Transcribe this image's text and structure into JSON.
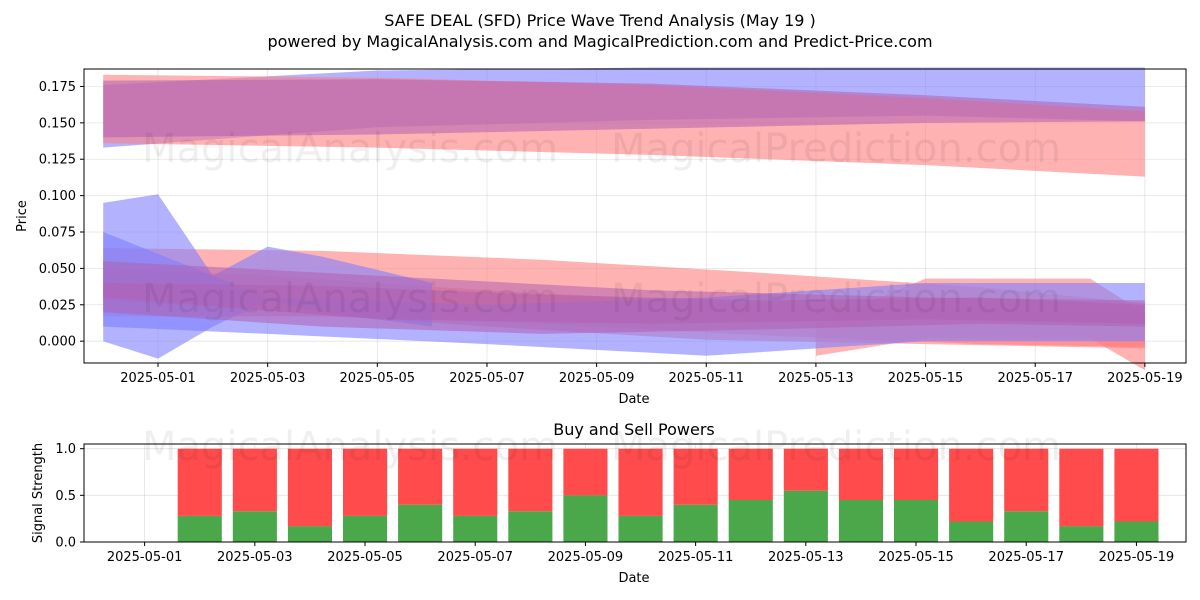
{
  "header": {
    "title": "SAFE DEAL (SFD) Price Wave Trend Analysis (May 19 )",
    "subtitle": "powered by MagicalAnalysis.com and MagicalPrediction.com and Predict-Price.com"
  },
  "watermarks": [
    "MagicalAnalysis.com",
    "MagicalPrediction.com"
  ],
  "colors": {
    "bull": "#4aa84a",
    "bear": "#ff4b4b",
    "blue_band": "#7f7fff",
    "red_band": "#ff7f7f",
    "purple_band": "#b060b0"
  },
  "chart_data": [
    {
      "type": "area",
      "title": "",
      "xlabel": "Date",
      "ylabel": "Price",
      "xlim": [
        "2025-04-30",
        "2025-05-19"
      ],
      "ylim": [
        -0.015,
        0.187
      ],
      "x_ticks": [
        "2025-05-01",
        "2025-05-03",
        "2025-05-05",
        "2025-05-07",
        "2025-05-09",
        "2025-05-11",
        "2025-05-13",
        "2025-05-15",
        "2025-05-17",
        "2025-05-19"
      ],
      "y_ticks": [
        "0.000",
        "0.025",
        "0.050",
        "0.075",
        "0.100",
        "0.125",
        "0.150",
        "0.175"
      ],
      "grid": true,
      "bands": [
        {
          "color": "blue",
          "x": [
            "2025-04-30",
            "2025-05-05",
            "2025-05-10",
            "2025-05-15",
            "2025-05-19"
          ],
          "low": [
            0.133,
            0.147,
            0.152,
            0.155,
            0.151
          ],
          "high": [
            0.176,
            0.186,
            0.188,
            0.188,
            0.188
          ]
        },
        {
          "color": "red",
          "x": [
            "2025-04-30",
            "2025-05-05",
            "2025-05-10",
            "2025-05-15",
            "2025-05-19"
          ],
          "low": [
            0.136,
            0.133,
            0.128,
            0.121,
            0.113
          ],
          "high": [
            0.183,
            0.181,
            0.176,
            0.167,
            0.158
          ]
        },
        {
          "color": "purple",
          "x": [
            "2025-04-30",
            "2025-05-05",
            "2025-05-10",
            "2025-05-15",
            "2025-05-19"
          ],
          "low": [
            0.14,
            0.142,
            0.146,
            0.15,
            0.151
          ],
          "high": [
            0.179,
            0.18,
            0.177,
            0.169,
            0.161
          ]
        },
        {
          "color": "red",
          "x": [
            "2025-04-30",
            "2025-05-04",
            "2025-05-08",
            "2025-05-12",
            "2025-05-16",
            "2025-05-19"
          ],
          "low": [
            0.017,
            0.017,
            0.012,
            0.004,
            -0.002,
            -0.004
          ],
          "high": [
            0.064,
            0.062,
            0.056,
            0.047,
            0.037,
            0.026
          ]
        },
        {
          "color": "red",
          "x": [
            "2025-04-30",
            "2025-05-03",
            "2025-05-07",
            "2025-05-11",
            "2025-05-15",
            "2025-05-19"
          ],
          "low": [
            0.028,
            0.021,
            0.01,
            0.001,
            -0.002,
            -0.005
          ],
          "high": [
            0.05,
            0.045,
            0.035,
            0.027,
            0.022,
            0.02
          ]
        },
        {
          "color": "red",
          "x": [
            "2025-05-13",
            "2025-05-15",
            "2025-05-18",
            "2025-05-19"
          ],
          "low": [
            -0.01,
            0.002,
            0.002,
            -0.02
          ],
          "high": [
            0.012,
            0.043,
            0.043,
            0.019
          ]
        },
        {
          "color": "blue",
          "x": [
            "2025-04-30",
            "2025-05-01",
            "2025-05-02",
            "2025-05-03",
            "2025-05-04",
            "2025-05-06"
          ],
          "low": [
            0.0,
            -0.012,
            0.01,
            0.028,
            0.02,
            0.01
          ],
          "high": [
            0.095,
            0.101,
            0.045,
            0.065,
            0.058,
            0.04
          ]
        },
        {
          "color": "blue",
          "x": [
            "2025-04-30",
            "2025-05-03",
            "2025-05-07",
            "2025-05-11",
            "2025-05-15",
            "2025-05-19"
          ],
          "low": [
            0.01,
            0.005,
            -0.002,
            -0.01,
            0.0,
            0.0
          ],
          "high": [
            0.075,
            0.03,
            0.025,
            0.03,
            0.04,
            0.04
          ]
        },
        {
          "color": "purple",
          "x": [
            "2025-04-30",
            "2025-05-04",
            "2025-05-08",
            "2025-05-12",
            "2025-05-16",
            "2025-05-19"
          ],
          "low": [
            0.02,
            0.01,
            0.005,
            0.008,
            0.012,
            0.01
          ],
          "high": [
            0.04,
            0.038,
            0.032,
            0.028,
            0.03,
            0.025
          ]
        },
        {
          "color": "purple",
          "x": [
            "2025-04-30",
            "2025-05-05",
            "2025-05-10",
            "2025-05-15",
            "2025-05-19"
          ],
          "low": [
            0.03,
            0.015,
            0.012,
            0.015,
            0.012
          ],
          "high": [
            0.055,
            0.045,
            0.035,
            0.03,
            0.028
          ]
        }
      ]
    },
    {
      "type": "bar",
      "title": "Buy and Sell Powers",
      "xlabel": "Date",
      "ylabel": "Signal Strength",
      "ylim": [
        0,
        1.05
      ],
      "y_ticks": [
        "0.0",
        "0.5",
        "1.0"
      ],
      "x_ticks": [
        "2025-05-01",
        "2025-05-03",
        "2025-05-05",
        "2025-05-07",
        "2025-05-09",
        "2025-05-11",
        "2025-05-13",
        "2025-05-15",
        "2025-05-17",
        "2025-05-19"
      ],
      "grid": true,
      "categories": [
        "2025-05-02",
        "2025-05-03",
        "2025-05-04",
        "2025-05-05",
        "2025-05-06",
        "2025-05-07",
        "2025-05-08",
        "2025-05-09",
        "2025-05-10",
        "2025-05-11",
        "2025-05-12",
        "2025-05-13",
        "2025-05-14",
        "2025-05-15",
        "2025-05-16",
        "2025-05-17",
        "2025-05-18",
        "2025-05-19"
      ],
      "series": [
        {
          "values": [
            0.28,
            0.33,
            0.17,
            0.28,
            0.4,
            0.28,
            0.33,
            0.5,
            0.28,
            0.4,
            0.45,
            0.55,
            0.45,
            0.45,
            0.22,
            0.33,
            0.17,
            0.22
          ]
        },
        {
          "values": [
            0.72,
            0.67,
            0.83,
            0.72,
            0.6,
            0.72,
            0.67,
            0.5,
            0.72,
            0.6,
            0.55,
            0.45,
            0.55,
            0.55,
            0.78,
            0.67,
            0.83,
            0.78
          ]
        }
      ]
    }
  ]
}
